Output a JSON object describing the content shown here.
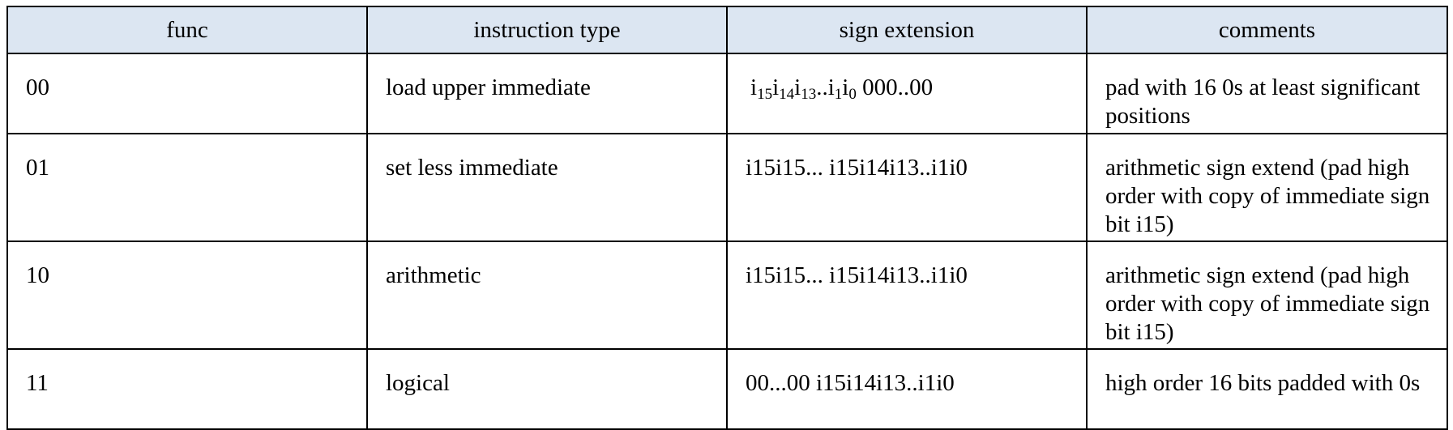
{
  "table": {
    "header_bg": "#dce6f2",
    "headers": [
      "func",
      "instruction type",
      "sign extension",
      "comments"
    ],
    "rows": [
      {
        "func": "00",
        "type": "load upper immediate",
        "sign_parts": [
          {
            "t": "i"
          },
          {
            "t": "15",
            "sub": true
          },
          {
            "t": "i"
          },
          {
            "t": "14",
            "sub": true
          },
          {
            "t": "i"
          },
          {
            "t": "13",
            "sub": true
          },
          {
            "t": "..i"
          },
          {
            "t": "1",
            "sub": true
          },
          {
            "t": "i"
          },
          {
            "t": "0",
            "sub": true
          },
          {
            "t": " 000..00"
          }
        ],
        "comment": "pad with 16 0s at least significant positions"
      },
      {
        "func": "01",
        "type": "set less immediate",
        "sign": "i15i15... i15i14i13..i1i0",
        "comment": "arithmetic sign extend (pad high order with copy of immediate sign bit i15)"
      },
      {
        "func": "10",
        "type": "arithmetic",
        "sign": "i15i15... i15i14i13..i1i0",
        "comment": "arithmetic sign extend (pad high order with copy of immediate sign bit i15)"
      },
      {
        "func": "11",
        "type": "logical",
        "sign": "00...00 i15i14i13..i1i0",
        "comment": "high order 16 bits padded with 0s"
      }
    ]
  }
}
